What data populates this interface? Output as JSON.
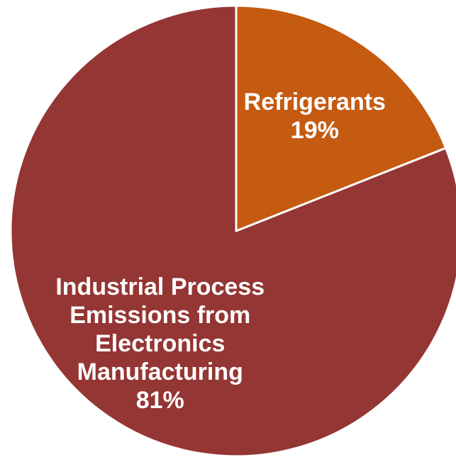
{
  "chart_data": {
    "type": "pie",
    "slices": [
      {
        "label": [
          "Refrigerants"
        ],
        "value": 19,
        "value_label": "19%",
        "color": "#c55a11"
      },
      {
        "label": [
          "Industrial Process",
          "Emissions from",
          "Electronics",
          "Manufacturing"
        ],
        "value": 81,
        "value_label": "81%",
        "color": "#943634"
      }
    ],
    "start_angle_deg": 0,
    "direction": "clockwise",
    "separator_color": "#ffffff"
  }
}
